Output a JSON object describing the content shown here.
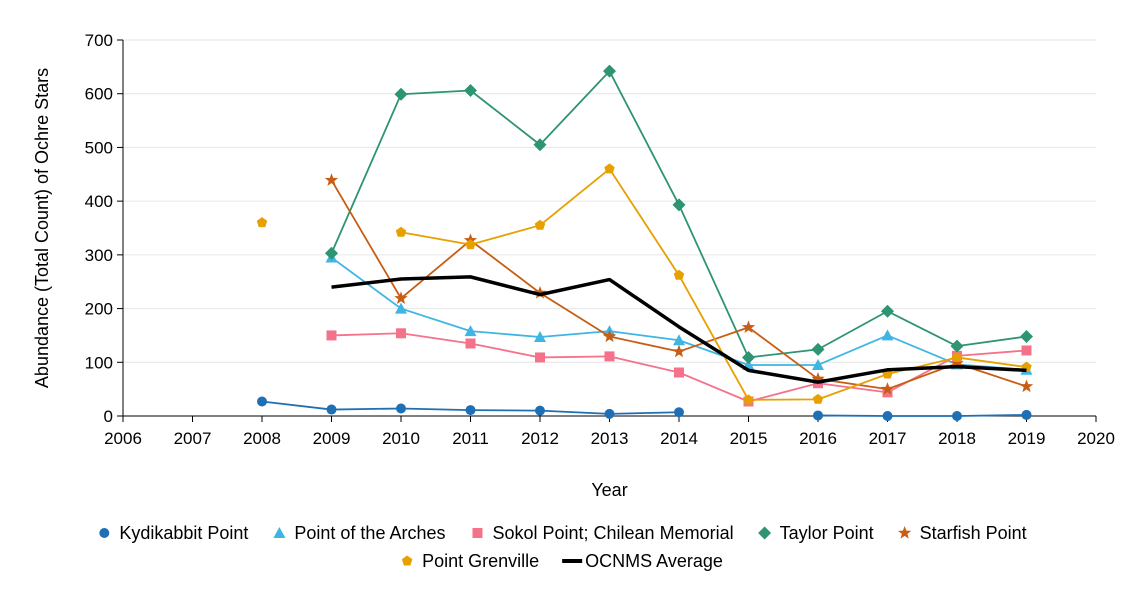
{
  "chart_data": {
    "type": "line",
    "xlabel": "Year",
    "ylabel": "Abundance (Total Count) of Ochre Stars",
    "xlim": [
      2006,
      2020
    ],
    "ylim": [
      0,
      700
    ],
    "x_ticks": [
      "2006",
      "2007",
      "2008",
      "2009",
      "2010",
      "2011",
      "2012",
      "2013",
      "2014",
      "2015",
      "2016",
      "2017",
      "2018",
      "2019",
      "2020"
    ],
    "y_ticks": [
      "0",
      "100",
      "200",
      "300",
      "400",
      "500",
      "600",
      "700"
    ],
    "grid": "horizontal",
    "legend_position": "bottom",
    "series": [
      {
        "name": "Kydikabbit Point",
        "color": "#1f6fb4",
        "marker": "circle",
        "x": [
          2008,
          2009,
          2010,
          2011,
          2012,
          2013,
          2014,
          2016,
          2017,
          2018,
          2019
        ],
        "y": [
          27,
          12,
          14,
          11,
          10,
          4,
          7,
          1,
          0,
          0,
          2
        ],
        "segments": [
          [
            0,
            6
          ],
          [
            7,
            10
          ]
        ]
      },
      {
        "name": "Point of the Arches",
        "color": "#3fb5e3",
        "marker": "triangle",
        "x": [
          2009,
          2010,
          2011,
          2012,
          2013,
          2014,
          2015,
          2016,
          2017,
          2018,
          2019
        ],
        "y": [
          295,
          200,
          158,
          147,
          158,
          141,
          95,
          95,
          150,
          96,
          86
        ],
        "segments": [
          [
            0,
            10
          ]
        ]
      },
      {
        "name": "Sokol Point; Chilean Memorial",
        "color": "#f4728a",
        "marker": "square",
        "x": [
          2009,
          2010,
          2011,
          2012,
          2013,
          2014,
          2015,
          2016,
          2017,
          2018,
          2019
        ],
        "y": [
          150,
          154,
          135,
          109,
          111,
          81,
          27,
          61,
          44,
          112,
          122
        ],
        "segments": [
          [
            0,
            10
          ]
        ]
      },
      {
        "name": "Taylor Point",
        "color": "#2e9473",
        "marker": "diamond",
        "x": [
          2009,
          2010,
          2011,
          2012,
          2013,
          2014,
          2015,
          2016,
          2017,
          2018,
          2019
        ],
        "y": [
          303,
          599,
          606,
          505,
          642,
          393,
          109,
          124,
          195,
          130,
          148
        ],
        "segments": [
          [
            0,
            10
          ]
        ]
      },
      {
        "name": "Starfish Point",
        "color": "#c85d14",
        "marker": "star",
        "x": [
          2009,
          2010,
          2011,
          2012,
          2013,
          2014,
          2015,
          2016,
          2017,
          2018,
          2019
        ],
        "y": [
          439,
          219,
          327,
          229,
          148,
          120,
          165,
          69,
          50,
          98,
          55
        ],
        "segments": [
          [
            0,
            10
          ]
        ]
      },
      {
        "name": "Point Grenville",
        "color": "#e6a000",
        "marker": "pentagon",
        "x": [
          2008,
          2010,
          2011,
          2012,
          2013,
          2014,
          2015,
          2016,
          2017,
          2018,
          2019
        ],
        "y": [
          360,
          342,
          319,
          355,
          460,
          262,
          30,
          31,
          78,
          109,
          91
        ],
        "segments": [
          [
            1,
            10
          ]
        ]
      },
      {
        "name": "OCNMS Average",
        "color": "#000000",
        "marker": "none",
        "line_width": 3.5,
        "x": [
          2009,
          2010,
          2011,
          2012,
          2013,
          2014,
          2015,
          2016,
          2017,
          2018,
          2019
        ],
        "y": [
          240,
          255,
          259,
          226,
          254,
          166,
          85,
          63,
          86,
          92,
          85
        ],
        "segments": [
          [
            0,
            10
          ]
        ]
      }
    ]
  }
}
